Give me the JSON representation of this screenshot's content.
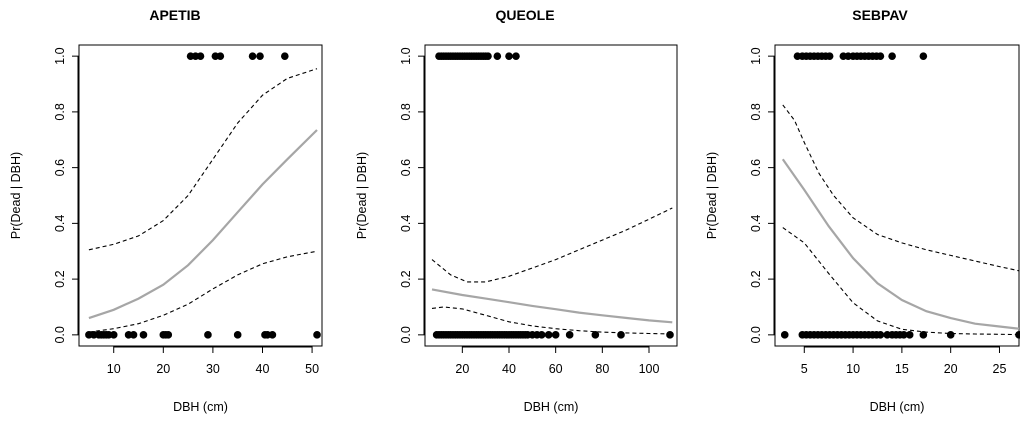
{
  "colors": {
    "points": "#000000",
    "fit_line": "#a6a6a6",
    "ci_line": "#000000",
    "frame": "#000000"
  },
  "chart_data": [
    {
      "type": "scatter",
      "title": "APETIB",
      "xlabel": "DBH (cm)",
      "ylabel": "Pr(Dead | DBH)",
      "xlim": [
        3,
        52
      ],
      "ylim": [
        -0.04,
        1.04
      ],
      "x_ticks": [
        10,
        20,
        30,
        40,
        50
      ],
      "x_tick_labels": [
        "10",
        "20",
        "30",
        "40",
        "50"
      ],
      "y_ticks": [
        0,
        0.2,
        0.4,
        0.6,
        0.8,
        1.0
      ],
      "y_tick_labels": [
        "0.0",
        "0.2",
        "0.4",
        "0.6",
        "0.8",
        "1.0"
      ],
      "points": {
        "dead_x": [
          25.5,
          26.5,
          27.5,
          30.5,
          31.5,
          38,
          39.5,
          44.5
        ],
        "alive_x": [
          5,
          6,
          7,
          7.5,
          8,
          8.5,
          9,
          10,
          13,
          14,
          16,
          20,
          20.5,
          21,
          29,
          35,
          40.5,
          41,
          42,
          51
        ]
      },
      "series": [
        {
          "role": "fit",
          "x": [
            5,
            10,
            15,
            20,
            25,
            30,
            35,
            40,
            45,
            51
          ],
          "values": [
            0.06,
            0.09,
            0.13,
            0.18,
            0.25,
            0.34,
            0.44,
            0.54,
            0.63,
            0.735
          ]
        },
        {
          "role": "lower",
          "x": [
            5,
            10,
            15,
            20,
            25,
            30,
            35,
            40,
            45,
            51
          ],
          "values": [
            0.01,
            0.022,
            0.04,
            0.07,
            0.11,
            0.165,
            0.215,
            0.255,
            0.28,
            0.3
          ]
        },
        {
          "role": "upper",
          "x": [
            5,
            10,
            15,
            20,
            25,
            30,
            35,
            40,
            45,
            51
          ],
          "values": [
            0.305,
            0.325,
            0.355,
            0.41,
            0.5,
            0.63,
            0.76,
            0.86,
            0.92,
            0.955
          ]
        }
      ]
    },
    {
      "type": "scatter",
      "title": "QUEOLE",
      "xlabel": "DBH (cm)",
      "ylabel": "Pr(Dead | DBH)",
      "xlim": [
        4,
        112
      ],
      "ylim": [
        -0.04,
        1.04
      ],
      "x_ticks": [
        20,
        40,
        60,
        80,
        100
      ],
      "x_tick_labels": [
        "20",
        "40",
        "60",
        "80",
        "100"
      ],
      "y_ticks": [
        0,
        0.2,
        0.4,
        0.6,
        0.8,
        1.0
      ],
      "y_tick_labels": [
        "0.0",
        "0.2",
        "0.4",
        "0.6",
        "0.8",
        "1.0"
      ],
      "points": {
        "dead_x": [
          10,
          11,
          12,
          13,
          14,
          15,
          16,
          17,
          18,
          19,
          20,
          21,
          22,
          23,
          24,
          25,
          26,
          27,
          28,
          29,
          30,
          31,
          35,
          40,
          43
        ],
        "alive_x": [
          9,
          10,
          11,
          12,
          13,
          14,
          15,
          16,
          17,
          18,
          19,
          20,
          21,
          22,
          23,
          24,
          25,
          26,
          27,
          28,
          29,
          30,
          31,
          32,
          33,
          34,
          35,
          36,
          37,
          38,
          39,
          40,
          41,
          42,
          43,
          44,
          45,
          46,
          47,
          48,
          50,
          52,
          54,
          57,
          60,
          66,
          77,
          88,
          109
        ]
      },
      "series": [
        {
          "role": "fit",
          "x": [
            7,
            20,
            30,
            40,
            50,
            60,
            70,
            80,
            90,
            100,
            110
          ],
          "values": [
            0.163,
            0.143,
            0.13,
            0.117,
            0.104,
            0.092,
            0.08,
            0.07,
            0.061,
            0.052,
            0.045
          ]
        },
        {
          "role": "lower",
          "x": [
            7,
            12,
            20,
            30,
            40,
            50,
            60,
            70,
            80,
            90,
            100,
            110
          ],
          "values": [
            0.095,
            0.1,
            0.093,
            0.07,
            0.047,
            0.032,
            0.022,
            0.015,
            0.01,
            0.007,
            0.005,
            0.003
          ]
        },
        {
          "role": "upper",
          "x": [
            7,
            15,
            22,
            30,
            40,
            50,
            60,
            70,
            80,
            90,
            100,
            110
          ],
          "values": [
            0.27,
            0.215,
            0.19,
            0.19,
            0.21,
            0.24,
            0.27,
            0.305,
            0.34,
            0.375,
            0.415,
            0.455
          ]
        }
      ]
    },
    {
      "type": "scatter",
      "title": "SEBPAV",
      "xlabel": "DBH (cm)",
      "ylabel": "Pr(Dead | DBH)",
      "xlim": [
        2,
        27
      ],
      "ylim": [
        -0.04,
        1.04
      ],
      "x_ticks": [
        5,
        10,
        15,
        20,
        25
      ],
      "x_tick_labels": [
        "5",
        "10",
        "15",
        "20",
        "25"
      ],
      "y_ticks": [
        0,
        0.2,
        0.4,
        0.6,
        0.8,
        1.0
      ],
      "y_tick_labels": [
        "0.0",
        "0.2",
        "0.4",
        "0.6",
        "0.8",
        "1.0"
      ],
      "points": {
        "dead_x": [
          4.3,
          4.8,
          5.2,
          5.6,
          6,
          6.4,
          6.8,
          7.2,
          7.6,
          9,
          9.5,
          10,
          10.4,
          10.8,
          11.2,
          11.6,
          12,
          12.4,
          12.8,
          14,
          17.2
        ],
        "alive_x": [
          3,
          4.8,
          5.2,
          5.6,
          6,
          6.4,
          6.8,
          7.2,
          7.6,
          8,
          8.4,
          8.8,
          9.2,
          9.6,
          10,
          10.4,
          10.8,
          11.2,
          11.6,
          12,
          12.4,
          12.8,
          13.5,
          14,
          14.4,
          14.8,
          15.2,
          15.8,
          17.2,
          20,
          27
        ]
      },
      "series": [
        {
          "role": "fit",
          "x": [
            2.8,
            5,
            7.5,
            10,
            12.5,
            15,
            17.5,
            20,
            22.5,
            25,
            27
          ],
          "values": [
            0.63,
            0.52,
            0.39,
            0.275,
            0.185,
            0.125,
            0.085,
            0.06,
            0.04,
            0.03,
            0.022
          ]
        },
        {
          "role": "lower",
          "x": [
            2.8,
            5,
            7.5,
            10,
            12.5,
            15,
            17.5,
            20,
            22.5,
            25,
            27
          ],
          "values": [
            0.385,
            0.33,
            0.22,
            0.115,
            0.05,
            0.02,
            0.01,
            0.005,
            0.003,
            0.002,
            0.001
          ]
        },
        {
          "role": "upper",
          "x": [
            2.8,
            4,
            5,
            6.5,
            8,
            10,
            12.5,
            15,
            17.5,
            20,
            22.5,
            25,
            27
          ],
          "values": [
            0.825,
            0.77,
            0.69,
            0.58,
            0.5,
            0.42,
            0.36,
            0.33,
            0.305,
            0.285,
            0.265,
            0.245,
            0.23
          ]
        }
      ]
    }
  ]
}
